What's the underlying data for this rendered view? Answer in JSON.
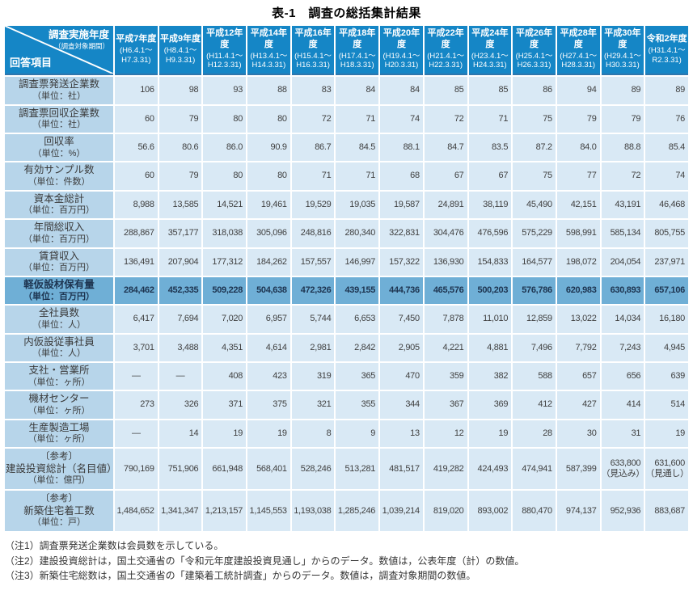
{
  "title": "表-1　調査の総括集計結果",
  "colors": {
    "header_bg": "#1586c6",
    "header_text": "#ffffff",
    "label_cell_bg": "#b7d5ea",
    "value_cell_bg": "#d9e9f5",
    "highlight_row_bg": "#6fafd6",
    "highlight_text": "#1d3450",
    "body_text": "#3f3f3f",
    "grid_line": "#ffffff"
  },
  "table": {
    "corner": {
      "top": "調査実施年度",
      "top_sub": "（調査対象期間）",
      "bottom": "回答項目"
    },
    "columns": [
      {
        "year": "平成7年度",
        "period": "(H6.4.1～\nH7.3.31)"
      },
      {
        "year": "平成9年度",
        "period": "(H8.4.1～\nH9.3.31)"
      },
      {
        "year": "平成12年度",
        "period": "(H11.4.1～\nH12.3.31)"
      },
      {
        "year": "平成14年度",
        "period": "(H13.4.1～\nH14.3.31)"
      },
      {
        "year": "平成16年度",
        "period": "(H15.4.1～\nH16.3.31)"
      },
      {
        "year": "平成18年度",
        "period": "(H17.4.1～\nH18.3.31)"
      },
      {
        "year": "平成20年度",
        "period": "(H19.4.1～\nH20.3.31)"
      },
      {
        "year": "平成22年度",
        "period": "(H21.4.1～\nH22.3.31)"
      },
      {
        "year": "平成24年度",
        "period": "(H23.4.1～\nH24.3.31)"
      },
      {
        "year": "平成26年度",
        "period": "(H25.4.1～\nH26.3.31)"
      },
      {
        "year": "平成28年度",
        "period": "(H27.4.1～\nH28.3.31)"
      },
      {
        "year": "平成30年度",
        "period": "(H29.4.1～\nH30.3.31)"
      },
      {
        "year": "令和2年度",
        "period": "(H31.4.1～\nR2.3.31)"
      }
    ],
    "rows": [
      {
        "label": "調査票発送企業数",
        "unit": "（単位：社）",
        "values": [
          "106",
          "98",
          "93",
          "88",
          "83",
          "84",
          "84",
          "85",
          "85",
          "86",
          "94",
          "89",
          "89"
        ]
      },
      {
        "label": "調査票回収企業数",
        "unit": "（単位：社）",
        "values": [
          "60",
          "79",
          "80",
          "80",
          "72",
          "71",
          "74",
          "72",
          "71",
          "75",
          "79",
          "79",
          "76"
        ]
      },
      {
        "label": "回収率",
        "unit": "（単位：%）",
        "values": [
          "56.6",
          "80.6",
          "86.0",
          "90.9",
          "86.7",
          "84.5",
          "88.1",
          "84.7",
          "83.5",
          "87.2",
          "84.0",
          "88.8",
          "85.4"
        ]
      },
      {
        "label": "有効サンプル数",
        "unit": "（単位：件数）",
        "values": [
          "60",
          "79",
          "80",
          "80",
          "71",
          "71",
          "68",
          "67",
          "67",
          "75",
          "77",
          "72",
          "74"
        ]
      },
      {
        "label": "資本金総計",
        "unit": "（単位：百万円）",
        "values": [
          "8,988",
          "13,585",
          "14,521",
          "19,461",
          "19,529",
          "19,035",
          "19,587",
          "24,891",
          "38,119",
          "45,490",
          "42,151",
          "43,191",
          "46,468"
        ]
      },
      {
        "label": "年間総収入",
        "unit": "（単位：百万円）",
        "values": [
          "288,867",
          "357,177",
          "318,038",
          "305,096",
          "248,816",
          "280,340",
          "322,831",
          "304,476",
          "476,596",
          "575,229",
          "598,991",
          "585,134",
          "805,755"
        ]
      },
      {
        "label": "賃貸収入",
        "unit": "（単位：百万円）",
        "values": [
          "136,491",
          "207,904",
          "177,312",
          "184,262",
          "157,557",
          "146,997",
          "157,322",
          "136,930",
          "154,833",
          "164,577",
          "198,072",
          "204,054",
          "237,971"
        ]
      },
      {
        "label": "軽仮設材保有量",
        "unit": "（単位：百万円）",
        "highlight": true,
        "values": [
          "284,462",
          "452,335",
          "509,228",
          "504,638",
          "472,326",
          "439,155",
          "444,736",
          "465,576",
          "500,203",
          "576,786",
          "620,983",
          "630,893",
          "657,106"
        ]
      },
      {
        "label": "全社員数",
        "unit": "（単位：人）",
        "values": [
          "6,417",
          "7,694",
          "7,020",
          "6,957",
          "5,744",
          "6,653",
          "7,450",
          "7,878",
          "11,010",
          "12,859",
          "13,022",
          "14,034",
          "16,180"
        ]
      },
      {
        "label": "内仮設従事社員",
        "unit": "（単位：人）",
        "values": [
          "3,701",
          "3,488",
          "4,351",
          "4,614",
          "2,981",
          "2,842",
          "2,905",
          "4,221",
          "4,881",
          "7,496",
          "7,792",
          "7,243",
          "4,945"
        ]
      },
      {
        "label": "支社・営業所",
        "unit": "（単位：ヶ所）",
        "values": [
          "―",
          "―",
          "408",
          "423",
          "319",
          "365",
          "470",
          "359",
          "382",
          "588",
          "657",
          "656",
          "639"
        ]
      },
      {
        "label": "機材センター",
        "unit": "（単位：ヶ所）",
        "values": [
          "273",
          "326",
          "371",
          "375",
          "321",
          "355",
          "344",
          "367",
          "369",
          "412",
          "427",
          "414",
          "514"
        ]
      },
      {
        "label": "生産製造工場",
        "unit": "（単位：ヶ所）",
        "values": [
          "―",
          "14",
          "19",
          "19",
          "8",
          "9",
          "13",
          "12",
          "19",
          "28",
          "30",
          "31",
          "19"
        ]
      },
      {
        "prefix": "〔参考〕",
        "label": "建設投資総計（名目値）",
        "unit": "（単位：億円）",
        "tall": true,
        "values": [
          "790,169",
          "751,906",
          "661,948",
          "568,401",
          "528,246",
          "513,281",
          "481,517",
          "419,282",
          "424,493",
          "474,941",
          "587,399",
          "633,800\n（見込み）",
          "631,600\n（見通し）"
        ]
      },
      {
        "prefix": "〔参考〕",
        "label": "新築住宅着工数",
        "unit": "（単位：戸）",
        "tall": true,
        "values": [
          "1,484,652",
          "1,341,347",
          "1,213,157",
          "1,145,553",
          "1,193,038",
          "1,285,246",
          "1,039,214",
          "819,020",
          "893,002",
          "880,470",
          "974,137",
          "952,936",
          "883,687"
        ]
      }
    ]
  },
  "notes": [
    "（注1）調査票発送企業数は会員数を示している。",
    "（注2）建設投資総計は，国土交通省の「令和元年度建設投資見通し」からのデータ。数値は，公表年度（計）の数値。",
    "（注3）新築住宅総数は，国土交通省の「建築着工統計調査」からのデータ。数値は，調査対象期間の数値。"
  ]
}
